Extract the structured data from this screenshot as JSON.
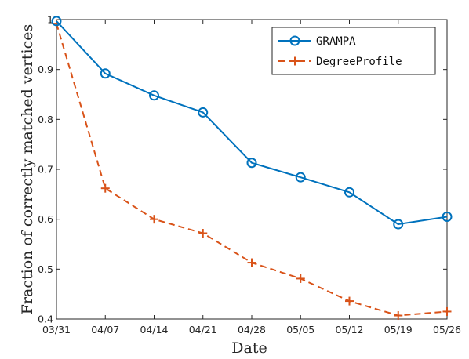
{
  "chart_data": {
    "type": "line",
    "title": "",
    "xlabel": "Date",
    "ylabel": "Fraction of correctly matched vertices",
    "categories": [
      "03/31",
      "04/07",
      "04/14",
      "04/21",
      "04/28",
      "05/05",
      "05/12",
      "05/19",
      "05/26"
    ],
    "ylim": [
      0.4,
      1.0
    ],
    "yticks": [
      "0.4",
      "0.5",
      "0.6",
      "0.7",
      "0.8",
      "0.9",
      "1"
    ],
    "grid": false,
    "legend_position": "top-right",
    "series": [
      {
        "name": "GRAMPA",
        "values": [
          0.997,
          0.892,
          0.848,
          0.814,
          0.713,
          0.684,
          0.654,
          0.59,
          0.605
        ],
        "color": "#0072BD",
        "line_style": "solid",
        "marker": "circle"
      },
      {
        "name": "DegreeProfile",
        "values": [
          0.992,
          0.662,
          0.6,
          0.572,
          0.513,
          0.481,
          0.436,
          0.407,
          0.415
        ],
        "color": "#D95319",
        "line_style": "dashed",
        "marker": "plus"
      }
    ]
  }
}
